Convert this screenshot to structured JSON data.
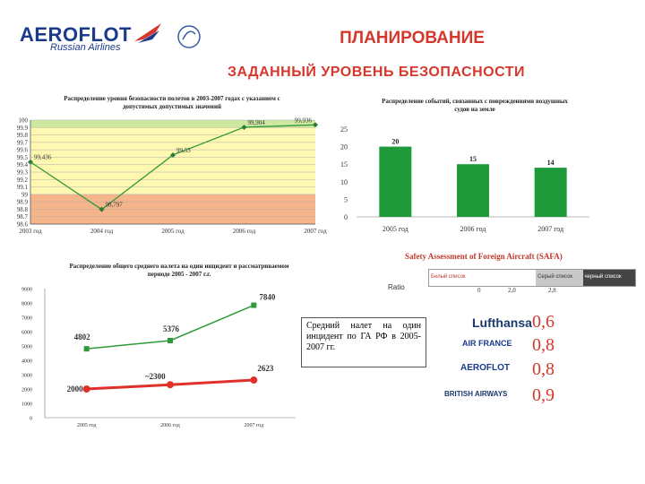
{
  "header": {
    "logo_text": "AEROFLOT",
    "logo_sub": "Russian Airlines",
    "title": "ПЛАНИРОВАНИЕ",
    "subtitle": "ЗАДАННЫЙ УРОВЕНЬ БЕЗОПАСНОСТИ"
  },
  "colors": {
    "accent": "#d4382c",
    "brand": "#1a3a8c",
    "bar": "#1e9a3a",
    "line_top": "#2e9a3a",
    "line_bottom": "#e0302a"
  },
  "chart_data": [
    {
      "id": "safety-level",
      "type": "line",
      "title": "Распределение уровня безопасности полетов в 2003-2007 годах с указанием с допустимых допустимых значений",
      "categories": [
        "2003 год",
        "2004 год",
        "2005 год",
        "2006 год",
        "2007 год"
      ],
      "values": [
        99.436,
        98.797,
        99.53,
        99.904,
        99.936
      ],
      "data_labels": [
        "99,436",
        "98,797",
        "99,53",
        "99,904",
        "99,936"
      ],
      "ylim": [
        98.6,
        100
      ],
      "yticks": [
        "100",
        "99.9",
        "99.8",
        "99.7",
        "99.6",
        "99.5",
        "99.4",
        "99.3",
        "99.2",
        "99.1",
        "99",
        "98.9",
        "98.8",
        "98.7",
        "98.6"
      ],
      "zones": [
        {
          "from": 99.9,
          "to": 100,
          "color": "#cfe8a0"
        },
        {
          "from": 99.0,
          "to": 99.9,
          "color": "#fff8b0"
        },
        {
          "from": 98.6,
          "to": 99.0,
          "color": "#f6b48a"
        }
      ],
      "grid": true
    },
    {
      "id": "aircraft-damage",
      "type": "bar",
      "title": "Распределение событий, связанных с повреждениями воздушных судов на земле",
      "categories": [
        "2005 год",
        "2006 год",
        "2007 год"
      ],
      "values": [
        20,
        15,
        14
      ],
      "ylim": [
        0,
        25
      ],
      "yticks": [
        "0",
        "5",
        "10",
        "15",
        "20",
        "25"
      ]
    },
    {
      "id": "flight-hours",
      "type": "line",
      "title": "Распределение общего среднего налета на один инцидент и рассматриваемом периоде 2005 - 2007 г.г.",
      "categories": [
        "2005 год",
        "2006 год",
        "2007 год"
      ],
      "ylim": [
        0,
        9000
      ],
      "yticks": [
        "0",
        "1000",
        "2000",
        "3000",
        "4000",
        "5000",
        "6000",
        "7000",
        "8000",
        "9000"
      ],
      "series": [
        {
          "values": [
            4802,
            5376,
            7840
          ],
          "labels": [
            "4802",
            "5376",
            "7840"
          ]
        },
        {
          "values": [
            2000,
            2300,
            2623
          ],
          "labels": [
            "2000",
            "~2300",
            "2623"
          ]
        }
      ]
    }
  ],
  "note": {
    "text": "Средний налет на один инцидент по ГА РФ в 2005-2007 гг."
  },
  "safa": {
    "title": "Safety Assessment of Foreign Aircraft (SAFA)",
    "ratio_label": "Ratio",
    "segments": [
      "Белый список",
      "Серый список",
      "черный список"
    ],
    "ticks": [
      "0",
      "2,0",
      "2,8"
    ],
    "airlines": [
      {
        "name": "Lufthansa",
        "ratio": "0,6"
      },
      {
        "name": "AIR FRANCE",
        "ratio": "0,8"
      },
      {
        "name": "AEROFLOT",
        "ratio": "0,8"
      },
      {
        "name": "BRITISH AIRWAYS",
        "ratio": "0,9"
      }
    ]
  }
}
